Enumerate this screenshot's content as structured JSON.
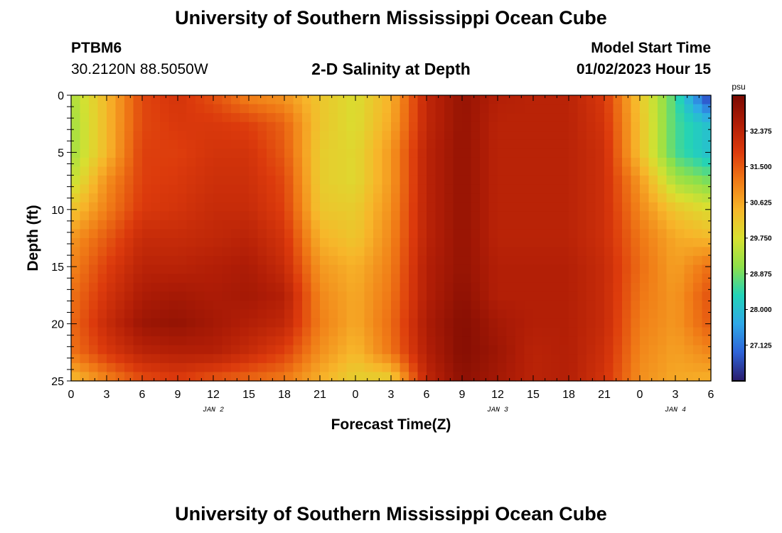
{
  "page": {
    "title_top": "University of Southern Mississippi Ocean Cube",
    "title_bottom": "University of Southern Mississippi Ocean Cube"
  },
  "header": {
    "station_id": "PTBM6",
    "station_coords": "30.2120N  88.5050W",
    "plot_title": "2-D Salinity at Depth",
    "model_start_label": "Model Start Time",
    "model_start_value": "01/02/2023 Hour 15"
  },
  "chart_data": {
    "type": "heatmap",
    "title": "2-D Salinity at Depth",
    "xlabel": "Forecast Time(Z)",
    "ylabel": "Depth (ft)",
    "x_range_hours": [
      0,
      54
    ],
    "y_range": [
      0,
      25
    ],
    "y_inverted": true,
    "x_ticks": [
      {
        "hour": 0,
        "label": "0"
      },
      {
        "hour": 3,
        "label": "3"
      },
      {
        "hour": 6,
        "label": "6"
      },
      {
        "hour": 9,
        "label": "9"
      },
      {
        "hour": 12,
        "label": "12"
      },
      {
        "hour": 15,
        "label": "15"
      },
      {
        "hour": 18,
        "label": "18"
      },
      {
        "hour": 21,
        "label": "21"
      },
      {
        "hour": 24,
        "label": "0"
      },
      {
        "hour": 27,
        "label": "3"
      },
      {
        "hour": 30,
        "label": "6"
      },
      {
        "hour": 33,
        "label": "9"
      },
      {
        "hour": 36,
        "label": "12"
      },
      {
        "hour": 39,
        "label": "15"
      },
      {
        "hour": 42,
        "label": "18"
      },
      {
        "hour": 45,
        "label": "21"
      },
      {
        "hour": 48,
        "label": "0"
      },
      {
        "hour": 51,
        "label": "3"
      },
      {
        "hour": 54,
        "label": "6"
      }
    ],
    "date_labels": [
      {
        "hour": 12,
        "label": "JAN 2"
      },
      {
        "hour": 36,
        "label": "JAN 3"
      },
      {
        "hour": 51,
        "label": "JAN 4"
      }
    ],
    "y_ticks": [
      {
        "value": 0,
        "label": "0"
      },
      {
        "value": 5,
        "label": "5"
      },
      {
        "value": 10,
        "label": "10"
      },
      {
        "value": 15,
        "label": "15"
      },
      {
        "value": 20,
        "label": "20"
      },
      {
        "value": 25,
        "label": "25"
      }
    ],
    "colorbar": {
      "unit": "psu",
      "range": [
        26.25,
        33.25
      ],
      "ticks": [
        {
          "value": 27.125,
          "label": "27.125"
        },
        {
          "value": 28.0,
          "label": "28.000"
        },
        {
          "value": 28.875,
          "label": "28.875"
        },
        {
          "value": 29.75,
          "label": "29.750"
        },
        {
          "value": 30.625,
          "label": "30.625"
        },
        {
          "value": 31.5,
          "label": "31.500"
        },
        {
          "value": 32.375,
          "label": "32.375"
        }
      ],
      "stops": [
        "#2a1b6b",
        "#2e63d8",
        "#2fa8e8",
        "#22d3b8",
        "#8ee04a",
        "#d8e030",
        "#f7b62a",
        "#f07a16",
        "#dc3a0c",
        "#b01d06",
        "#7a0a02"
      ]
    },
    "grid_depths": [
      0,
      2.5,
      5,
      7.5,
      10,
      12.5,
      15,
      17.5,
      20,
      22.5,
      25
    ],
    "grid_hours": [
      0,
      3,
      6,
      9,
      12,
      15,
      18,
      21,
      24,
      27,
      30,
      33,
      36,
      39,
      42,
      45,
      48,
      51,
      54
    ],
    "salinity_grid": [
      [
        29.3,
        30.4,
        31.7,
        32.0,
        31.6,
        31.0,
        30.8,
        30.2,
        29.8,
        30.5,
        32.3,
        32.9,
        32.5,
        32.4,
        32.4,
        31.9,
        30.2,
        28.6,
        26.4
      ],
      [
        29.2,
        30.4,
        31.7,
        31.9,
        31.9,
        31.8,
        31.4,
        30.2,
        29.8,
        30.6,
        32.3,
        32.9,
        32.4,
        32.4,
        32.4,
        32.0,
        30.3,
        28.6,
        28.0
      ],
      [
        29.2,
        30.4,
        31.8,
        31.8,
        32.0,
        32.0,
        31.5,
        30.1,
        29.9,
        30.8,
        32.4,
        32.9,
        32.4,
        32.4,
        32.4,
        32.1,
        30.3,
        28.6,
        28.0
      ],
      [
        29.5,
        30.9,
        31.8,
        31.9,
        32.1,
        32.1,
        31.7,
        30.1,
        29.9,
        30.8,
        32.4,
        32.9,
        32.4,
        32.4,
        32.4,
        32.1,
        30.8,
        29.3,
        28.9
      ],
      [
        30.2,
        31.1,
        31.9,
        32.0,
        32.2,
        32.2,
        31.8,
        30.2,
        30.1,
        30.9,
        32.4,
        32.9,
        32.4,
        32.4,
        32.4,
        32.1,
        31.0,
        30.2,
        29.8
      ],
      [
        30.8,
        31.5,
        32.2,
        32.2,
        32.3,
        32.4,
        32.0,
        30.5,
        30.2,
        31.0,
        32.4,
        32.9,
        32.4,
        32.4,
        32.4,
        32.1,
        31.2,
        30.6,
        30.4
      ],
      [
        31.0,
        31.8,
        32.4,
        32.4,
        32.5,
        32.6,
        32.2,
        30.8,
        30.5,
        31.1,
        32.5,
        32.9,
        32.5,
        32.5,
        32.5,
        32.2,
        31.3,
        30.7,
        31.3
      ],
      [
        31.2,
        32.0,
        32.6,
        32.7,
        32.6,
        32.7,
        32.5,
        31.0,
        30.6,
        31.2,
        32.5,
        33.0,
        32.5,
        32.5,
        32.5,
        32.2,
        31.2,
        30.8,
        31.6
      ],
      [
        31.3,
        32.2,
        32.8,
        32.9,
        32.7,
        32.5,
        32.3,
        31.1,
        30.6,
        31.3,
        32.6,
        33.1,
        32.7,
        32.5,
        32.5,
        32.2,
        31.1,
        30.8,
        31.5
      ],
      [
        31.2,
        31.9,
        32.4,
        32.5,
        32.5,
        32.2,
        31.8,
        30.9,
        30.4,
        31.2,
        32.5,
        33.1,
        32.8,
        32.4,
        32.5,
        32.1,
        31.0,
        30.7,
        31.0
      ],
      [
        30.3,
        31.0,
        31.6,
        31.8,
        31.5,
        31.3,
        31.1,
        30.5,
        30.0,
        30.0,
        32.3,
        33.0,
        32.7,
        32.4,
        32.5,
        32.0,
        30.9,
        30.6,
        30.5
      ]
    ]
  }
}
